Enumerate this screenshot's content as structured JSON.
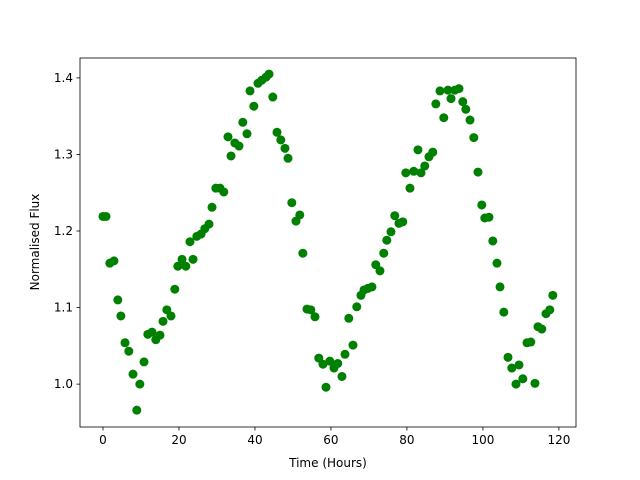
{
  "chart_data": {
    "type": "scatter",
    "xlabel": "Time (Hours)",
    "ylabel": "Normalised Flux",
    "color": "#008000",
    "x": [
      0,
      0.8,
      1.8,
      2.9,
      3.9,
      4.7,
      5.8,
      6.8,
      7.9,
      8.9,
      9.7,
      10.8,
      11.8,
      12.9,
      13.9,
      15.0,
      15.8,
      16.8,
      17.9,
      18.9,
      19.7,
      20.8,
      21.8,
      22.9,
      23.7,
      24.7,
      25.8,
      26.8,
      27.9,
      28.7,
      29.7,
      30.8,
      31.8,
      32.9,
      33.7,
      34.7,
      35.8,
      36.8,
      37.9,
      38.7,
      39.7,
      40.8,
      41.8,
      42.9,
      43.7,
      44.7,
      45.8,
      46.8,
      47.9,
      48.7,
      49.7,
      50.8,
      51.8,
      52.6,
      53.7,
      54.7,
      55.8,
      56.8,
      57.9,
      58.7,
      59.7,
      60.8,
      61.8,
      62.9,
      63.7,
      64.7,
      65.8,
      66.8,
      67.9,
      68.7,
      69.7,
      70.8,
      71.8,
      72.9,
      73.9,
      74.7,
      75.8,
      76.8,
      77.9,
      78.9,
      79.7,
      80.8,
      81.8,
      82.9,
      83.7,
      84.7,
      85.8,
      86.8,
      87.6,
      88.7,
      89.7,
      90.8,
      91.6,
      92.6,
      93.7,
      94.7,
      95.5,
      96.6,
      97.6,
      98.7,
      99.7,
      100.5,
      101.6,
      102.6,
      103.7,
      104.5,
      105.5,
      106.6,
      107.6,
      108.7,
      109.5,
      110.5,
      111.6,
      112.6,
      113.7,
      114.5,
      115.5,
      116.6,
      117.6,
      118.4
    ],
    "values": [
      1.219,
      1.219,
      1.158,
      1.161,
      1.11,
      1.089,
      1.054,
      1.043,
      1.013,
      0.966,
      1.0,
      1.029,
      1.065,
      1.068,
      1.058,
      1.064,
      1.082,
      1.097,
      1.089,
      1.124,
      1.154,
      1.163,
      1.154,
      1.186,
      1.163,
      1.193,
      1.196,
      1.203,
      1.209,
      1.231,
      1.256,
      1.256,
      1.251,
      1.323,
      1.298,
      1.315,
      1.311,
      1.342,
      1.327,
      1.383,
      1.363,
      1.393,
      1.397,
      1.401,
      1.405,
      1.375,
      1.329,
      1.319,
      1.308,
      1.295,
      1.237,
      1.213,
      1.221,
      1.171,
      1.098,
      1.097,
      1.088,
      1.034,
      1.026,
      0.996,
      1.03,
      1.021,
      1.027,
      1.01,
      1.039,
      1.086,
      1.051,
      1.101,
      1.116,
      1.123,
      1.125,
      1.127,
      1.156,
      1.148,
      1.171,
      1.188,
      1.199,
      1.22,
      1.21,
      1.212,
      1.276,
      1.256,
      1.278,
      1.306,
      1.276,
      1.285,
      1.297,
      1.303,
      1.366,
      1.383,
      1.348,
      1.384,
      1.373,
      1.384,
      1.386,
      1.369,
      1.359,
      1.345,
      1.322,
      1.277,
      1.234,
      1.217,
      1.218,
      1.187,
      1.158,
      1.127,
      1.094,
      1.035,
      1.021,
      1.0,
      1.025,
      1.007,
      1.054,
      1.055,
      1.001,
      1.075,
      1.072,
      1.092,
      1.097,
      1.116
    ],
    "xlim": [
      -6.05,
      124.5
    ],
    "ylim": [
      0.944,
      1.426
    ],
    "xticks": [
      0,
      20,
      40,
      60,
      80,
      100,
      120
    ],
    "yticks": [
      {
        "value": 1.0,
        "label": "1.0"
      },
      1.1,
      1.2,
      1.3,
      1.4
    ]
  }
}
